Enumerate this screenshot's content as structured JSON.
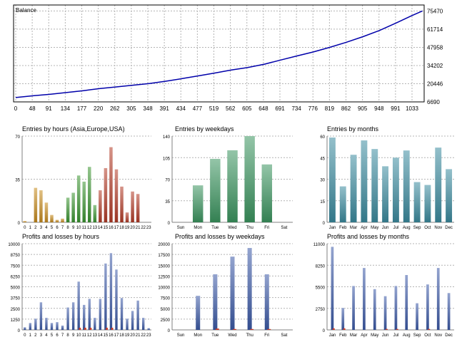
{
  "colors": {
    "background": "#ffffff",
    "grid": "#b4b4b4",
    "axis": "#000000",
    "balance_line": "#0000aa",
    "hours_asia": "#c88c1e",
    "hours_europe": "#3c9632",
    "hours_usa": "#b43c28",
    "weekdays_green": "#3c9660",
    "months_teal": "#3c8ca0",
    "profit_blue": "#3c5aa8",
    "loss_red": "#c83c28"
  },
  "chart_data": [
    {
      "id": "balance",
      "type": "line",
      "title": "Balance",
      "x_ticks": [
        "0",
        "48",
        "91",
        "134",
        "177",
        "220",
        "262",
        "305",
        "348",
        "391",
        "434",
        "477",
        "519",
        "562",
        "605",
        "648",
        "691",
        "734",
        "776",
        "819",
        "862",
        "905",
        "948",
        "991",
        "1033"
      ],
      "y_ticks": [
        "6690",
        "20446",
        "34202",
        "47958",
        "61714",
        "75470"
      ],
      "xlim": [
        0,
        1060
      ],
      "ylim": [
        6690,
        80000
      ],
      "grid": true,
      "series": [
        {
          "x": [
            0,
            48,
            91,
            134,
            177,
            220,
            262,
            305,
            348,
            391,
            434,
            477,
            519,
            562,
            605,
            648,
            691,
            734,
            776,
            819,
            862,
            905,
            948,
            991,
            1033,
            1060
          ],
          "y": [
            10000,
            11400,
            12500,
            13800,
            15200,
            16800,
            18000,
            19300,
            20600,
            22300,
            24300,
            26400,
            28500,
            30800,
            32700,
            35200,
            38400,
            41500,
            44500,
            48000,
            51800,
            56000,
            60700,
            66300,
            72000,
            75470
          ]
        }
      ]
    },
    {
      "id": "entries-hours",
      "type": "bar",
      "title": "Entries by hours (Asia,Europe,USA)",
      "categories": [
        "0",
        "1",
        "2",
        "3",
        "4",
        "5",
        "6",
        "7",
        "8",
        "9",
        "10",
        "11",
        "12",
        "13",
        "14",
        "15",
        "16",
        "17",
        "18",
        "19",
        "20",
        "21",
        "22",
        "23"
      ],
      "values": [
        1,
        0,
        28,
        26,
        16,
        6,
        2,
        3,
        20,
        24,
        38,
        33,
        45,
        14,
        26,
        44,
        61,
        43,
        29,
        8,
        25,
        23,
        0,
        0
      ],
      "y_ticks": [
        "0",
        "35",
        "70"
      ],
      "ylim": [
        0,
        70
      ],
      "grid": true,
      "groups": [
        {
          "name": "Asia",
          "from": 0,
          "to": 7,
          "color": "#c88c1e"
        },
        {
          "name": "Europe",
          "from": 8,
          "to": 13,
          "color": "#3c9632"
        },
        {
          "name": "USA",
          "from": 14,
          "to": 23,
          "color": "#b43c28"
        }
      ]
    },
    {
      "id": "entries-weekdays",
      "type": "bar",
      "title": "Entries by weekdays",
      "categories": [
        "Sun",
        "Mon",
        "Tue",
        "Wed",
        "Thu",
        "Fri",
        "Sat"
      ],
      "values": [
        0,
        60,
        103,
        117,
        140,
        94,
        0
      ],
      "y_ticks": [
        "0",
        "35",
        "70",
        "105",
        "140"
      ],
      "ylim": [
        0,
        140
      ],
      "grid": true
    },
    {
      "id": "entries-months",
      "type": "bar",
      "title": "Entries by months",
      "categories": [
        "Jan",
        "Feb",
        "Mar",
        "Apr",
        "May",
        "Jun",
        "Jul",
        "Aug",
        "Sep",
        "Oct",
        "Nov",
        "Dec"
      ],
      "values": [
        59,
        25,
        47,
        57,
        51,
        39,
        45,
        50,
        28,
        26,
        52,
        37
      ],
      "y_ticks": [
        "0",
        "15",
        "30",
        "45",
        "60"
      ],
      "ylim": [
        0,
        60
      ],
      "grid": true
    },
    {
      "id": "pl-hours",
      "type": "bar",
      "title": "Profits and losses by hours",
      "categories": [
        "0",
        "1",
        "2",
        "3",
        "4",
        "5",
        "6",
        "7",
        "8",
        "9",
        "10",
        "11",
        "12",
        "13",
        "14",
        "15",
        "16",
        "17",
        "18",
        "19",
        "20",
        "21",
        "22",
        "23"
      ],
      "y_ticks": [
        "0",
        "1250",
        "2500",
        "3750",
        "5000",
        "6250",
        "7500",
        "8750",
        "10000"
      ],
      "ylim": [
        0,
        10000
      ],
      "grid": true,
      "series": [
        {
          "name": "",
          "color": "#3c5aa8",
          "values": [
            300,
            800,
            1300,
            3200,
            1400,
            800,
            900,
            500,
            2600,
            3200,
            5600,
            2900,
            3600,
            1400,
            3600,
            7700,
            8900,
            7000,
            3700,
            1300,
            2200,
            3400,
            1400,
            200
          ]
        },
        {
          "name": "",
          "color": "#c83c28",
          "values": [
            0,
            0,
            0,
            0,
            0,
            0,
            0,
            0,
            0,
            0,
            250,
            250,
            250,
            0,
            0,
            250,
            250,
            0,
            0,
            0,
            0,
            0,
            0,
            0
          ]
        }
      ]
    },
    {
      "id": "pl-weekdays",
      "type": "bar",
      "title": "Profits and losses by weekdays",
      "categories": [
        "Sun",
        "Mon",
        "Tue",
        "Wed",
        "Thu",
        "Fri",
        "Sat"
      ],
      "y_ticks": [
        "0",
        "2500",
        "5000",
        "7500",
        "10000",
        "12500",
        "15000",
        "17500",
        "20000"
      ],
      "ylim": [
        0,
        20000
      ],
      "grid": true,
      "series": [
        {
          "name": "",
          "color": "#3c5aa8",
          "values": [
            0,
            7900,
            12900,
            17000,
            19000,
            12900,
            0
          ]
        },
        {
          "name": "",
          "color": "#c83c28",
          "values": [
            0,
            0,
            300,
            200,
            200,
            200,
            0
          ]
        }
      ]
    },
    {
      "id": "pl-months",
      "type": "bar",
      "title": "Profits and losses by months",
      "categories": [
        "Jan",
        "Feb",
        "Mar",
        "Apr",
        "May",
        "Jun",
        "Jul",
        "Aug",
        "Sep",
        "Oct",
        "Nov",
        "Dec"
      ],
      "y_ticks": [
        "0",
        "2750",
        "5500",
        "8250",
        "11000"
      ],
      "ylim": [
        0,
        11000
      ],
      "grid": true,
      "series": [
        {
          "name": "",
          "color": "#3c5aa8",
          "values": [
            10600,
            2800,
            5600,
            7900,
            5200,
            4300,
            5600,
            7000,
            3400,
            5800,
            7900,
            4700
          ]
        },
        {
          "name": "",
          "color": "#c83c28",
          "values": [
            200,
            200,
            0,
            0,
            0,
            120,
            120,
            0,
            0,
            120,
            0,
            0
          ]
        }
      ]
    }
  ]
}
